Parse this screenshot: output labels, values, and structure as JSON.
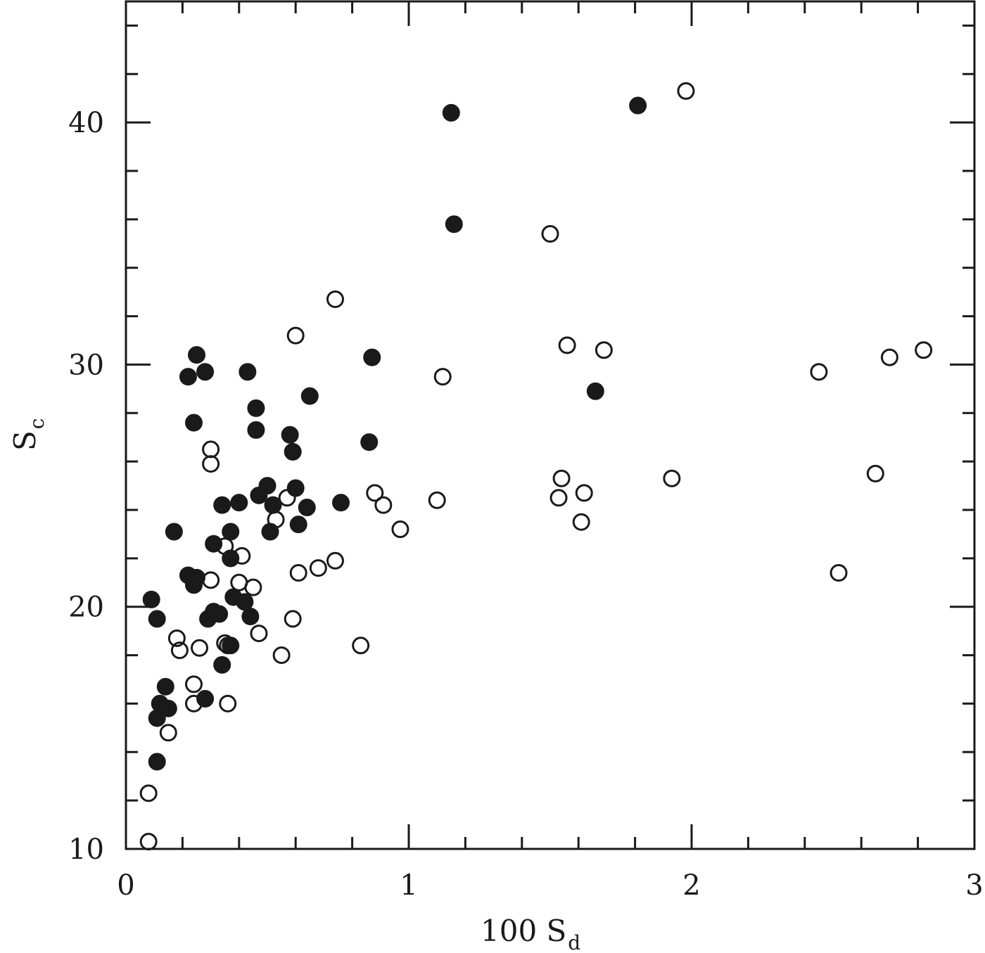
{
  "chart_data": {
    "type": "scatter",
    "title": "",
    "xlabel": "100 S_d",
    "ylabel": "S_c",
    "xlabel_main": "100 S",
    "xlabel_sub": "d",
    "ylabel_main": "S",
    "ylabel_sub": "c",
    "xlim": [
      0,
      3
    ],
    "ylim": [
      10,
      45
    ],
    "x_ticks": [
      0,
      1,
      2,
      3
    ],
    "x_tick_labels": [
      "0",
      "1",
      "2",
      "3"
    ],
    "x_minor_step": 0.2,
    "y_ticks": [
      10,
      20,
      30,
      40
    ],
    "y_tick_labels": [
      "10",
      "20",
      "30",
      "40"
    ],
    "y_minor_step": 2,
    "grid": false,
    "legend": null,
    "series": [
      {
        "name": "filled",
        "marker": "filled-circle",
        "color": "#1a1a1a",
        "points": [
          [
            1.15,
            40.4
          ],
          [
            1.81,
            40.7
          ],
          [
            1.16,
            35.8
          ],
          [
            0.87,
            30.3
          ],
          [
            1.66,
            28.9
          ],
          [
            0.25,
            30.4
          ],
          [
            0.28,
            29.7
          ],
          [
            0.22,
            29.5
          ],
          [
            0.43,
            29.7
          ],
          [
            0.46,
            28.2
          ],
          [
            0.65,
            28.7
          ],
          [
            0.24,
            27.6
          ],
          [
            0.46,
            27.3
          ],
          [
            0.58,
            27.1
          ],
          [
            0.59,
            26.4
          ],
          [
            0.86,
            26.8
          ],
          [
            0.5,
            25.0
          ],
          [
            0.47,
            24.6
          ],
          [
            0.6,
            24.9
          ],
          [
            0.34,
            24.2
          ],
          [
            0.4,
            24.3
          ],
          [
            0.52,
            24.2
          ],
          [
            0.64,
            24.1
          ],
          [
            0.76,
            24.3
          ],
          [
            0.17,
            23.1
          ],
          [
            0.37,
            23.1
          ],
          [
            0.51,
            23.1
          ],
          [
            0.61,
            23.4
          ],
          [
            0.31,
            22.6
          ],
          [
            0.37,
            22.0
          ],
          [
            0.22,
            21.3
          ],
          [
            0.25,
            21.2
          ],
          [
            0.24,
            20.9
          ],
          [
            0.09,
            20.3
          ],
          [
            0.38,
            20.4
          ],
          [
            0.42,
            20.2
          ],
          [
            0.31,
            19.8
          ],
          [
            0.33,
            19.7
          ],
          [
            0.29,
            19.5
          ],
          [
            0.44,
            19.6
          ],
          [
            0.11,
            19.5
          ],
          [
            0.37,
            18.4
          ],
          [
            0.34,
            17.6
          ],
          [
            0.14,
            16.7
          ],
          [
            0.28,
            16.2
          ],
          [
            0.12,
            16.0
          ],
          [
            0.15,
            15.8
          ],
          [
            0.11,
            15.4
          ],
          [
            0.11,
            13.6
          ]
        ]
      },
      {
        "name": "open",
        "marker": "open-circle",
        "color": "#1a1a1a",
        "points": [
          [
            1.98,
            41.3
          ],
          [
            1.5,
            35.4
          ],
          [
            0.74,
            32.7
          ],
          [
            0.6,
            31.2
          ],
          [
            1.56,
            30.8
          ],
          [
            1.69,
            30.6
          ],
          [
            1.12,
            29.5
          ],
          [
            2.45,
            29.7
          ],
          [
            2.7,
            30.3
          ],
          [
            2.82,
            30.6
          ],
          [
            0.3,
            26.5
          ],
          [
            0.3,
            25.9
          ],
          [
            1.54,
            25.3
          ],
          [
            1.93,
            25.3
          ],
          [
            2.65,
            25.5
          ],
          [
            0.88,
            24.7
          ],
          [
            1.62,
            24.7
          ],
          [
            1.53,
            24.5
          ],
          [
            0.57,
            24.5
          ],
          [
            0.91,
            24.2
          ],
          [
            1.1,
            24.4
          ],
          [
            0.53,
            23.6
          ],
          [
            1.61,
            23.5
          ],
          [
            0.97,
            23.2
          ],
          [
            0.35,
            22.5
          ],
          [
            0.41,
            22.1
          ],
          [
            0.74,
            21.9
          ],
          [
            0.68,
            21.6
          ],
          [
            0.61,
            21.4
          ],
          [
            2.52,
            21.4
          ],
          [
            0.3,
            21.1
          ],
          [
            0.4,
            21.0
          ],
          [
            0.45,
            20.8
          ],
          [
            0.59,
            19.5
          ],
          [
            0.47,
            18.9
          ],
          [
            0.18,
            18.7
          ],
          [
            0.19,
            18.2
          ],
          [
            0.26,
            18.3
          ],
          [
            0.35,
            18.5
          ],
          [
            0.36,
            18.4
          ],
          [
            0.83,
            18.4
          ],
          [
            0.55,
            18.0
          ],
          [
            0.24,
            16.8
          ],
          [
            0.24,
            16.0
          ],
          [
            0.36,
            16.0
          ],
          [
            0.15,
            14.8
          ],
          [
            0.08,
            12.3
          ],
          [
            0.08,
            10.3
          ]
        ]
      }
    ]
  }
}
